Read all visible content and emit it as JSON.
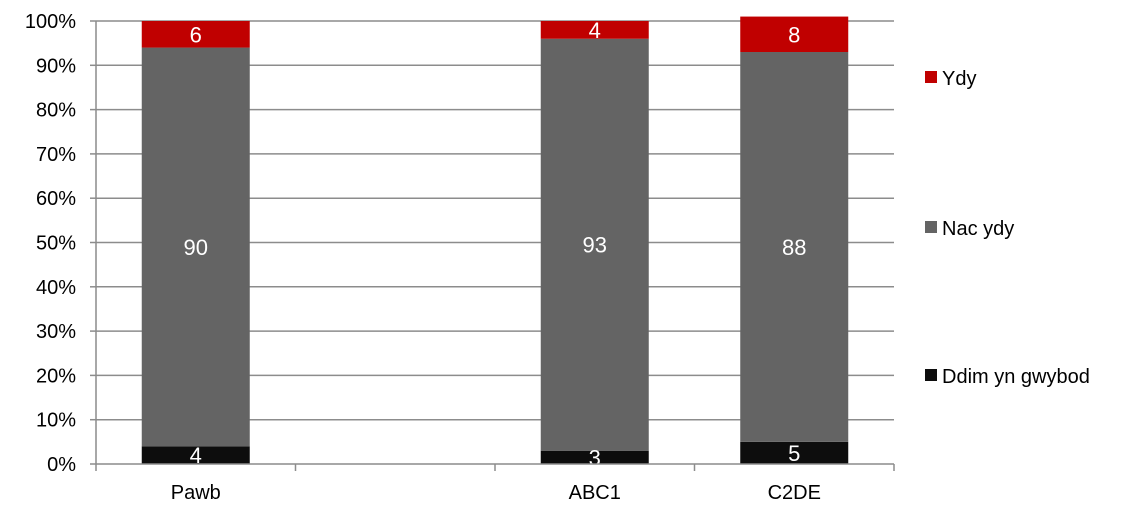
{
  "chart_data": {
    "type": "bar",
    "stacked": true,
    "percent": true,
    "categories": [
      "Pawb",
      "",
      "ABC1",
      "C2DE"
    ],
    "series": [
      {
        "name": "Ddim yn gwybod",
        "values": [
          4,
          null,
          3,
          5
        ],
        "labels": [
          "4",
          "",
          "3",
          "5"
        ],
        "color": "#0d0d0d"
      },
      {
        "name": "Nac ydy",
        "values": [
          90,
          null,
          93,
          88
        ],
        "labels": [
          "90",
          "",
          "93",
          "88"
        ],
        "color": "#646464"
      },
      {
        "name": "Ydy",
        "values": [
          6,
          null,
          4,
          8
        ],
        "labels": [
          "6",
          "",
          "4",
          "8"
        ],
        "color": "#c00000"
      }
    ],
    "y_ticks": [
      "0%",
      "10%",
      "20%",
      "30%",
      "40%",
      "50%",
      "60%",
      "70%",
      "80%",
      "90%",
      "100%"
    ],
    "ylim": [
      0,
      100
    ],
    "grid": true,
    "legend_placement": "right",
    "legend_order": [
      "Ydy",
      "Nac ydy",
      "Ddim yn gwybod"
    ],
    "title": "",
    "xlabel": "",
    "ylabel": ""
  }
}
